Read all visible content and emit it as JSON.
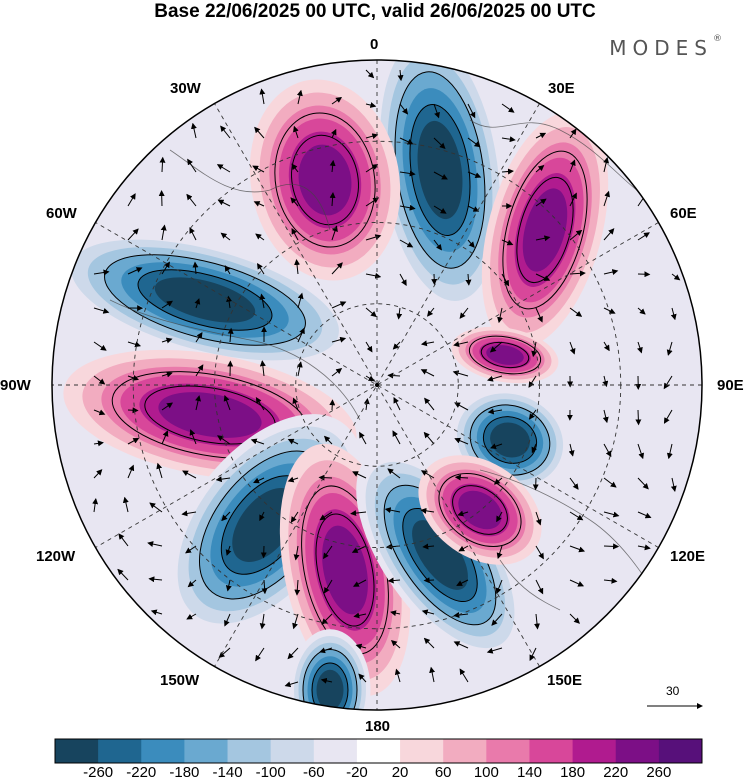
{
  "title": "Base 22/06/2025 00 UTC, valid 26/06/2025 00 UTC",
  "brand": "MODES",
  "brand_mark": "®",
  "longitude_labels": {
    "lon_0": "0",
    "lon_30e": "30E",
    "lon_60e": "60E",
    "lon_90e": "90E",
    "lon_120e": "120E",
    "lon_150e": "150E",
    "lon_180": "180",
    "lon_150w": "150W",
    "lon_120w": "120W",
    "lon_90w": "90W",
    "lon_60w": "60W",
    "lon_30w": "30W"
  },
  "reference_vector": {
    "label": "30"
  },
  "colorbar": {
    "ticks": [
      "-260",
      "-220",
      "-180",
      "-140",
      "-100",
      "-60",
      "-20",
      "20",
      "60",
      "100",
      "140",
      "180",
      "220",
      "260"
    ],
    "colors": [
      "#17445e",
      "#1f6690",
      "#3b8cbd",
      "#6aa9d0",
      "#a4c6e0",
      "#cdd9ea",
      "#e8e6f2",
      "#ffffff",
      "#f8d7dc",
      "#f2acc0",
      "#e97aab",
      "#d8479a",
      "#b01b8f",
      "#7c0f86",
      "#57107a"
    ]
  },
  "features": [
    {
      "sign": "neg",
      "label": "blue-0"
    },
    {
      "sign": "pos",
      "label": "mag-30w"
    },
    {
      "sign": "pos",
      "label": "mag-45e"
    },
    {
      "sign": "neg",
      "label": "blue-65w"
    },
    {
      "sign": "pos",
      "label": "mag-90w"
    },
    {
      "sign": "pos",
      "label": "mag-80e"
    },
    {
      "sign": "neg",
      "label": "blue-110e"
    },
    {
      "sign": "neg",
      "label": "blue-140w"
    },
    {
      "sign": "pos",
      "label": "mag-170w"
    },
    {
      "sign": "neg",
      "label": "blue-160e"
    },
    {
      "sign": "pos",
      "label": "mag-130e"
    },
    {
      "sign": "neg",
      "label": "blue-175w-south"
    }
  ]
}
